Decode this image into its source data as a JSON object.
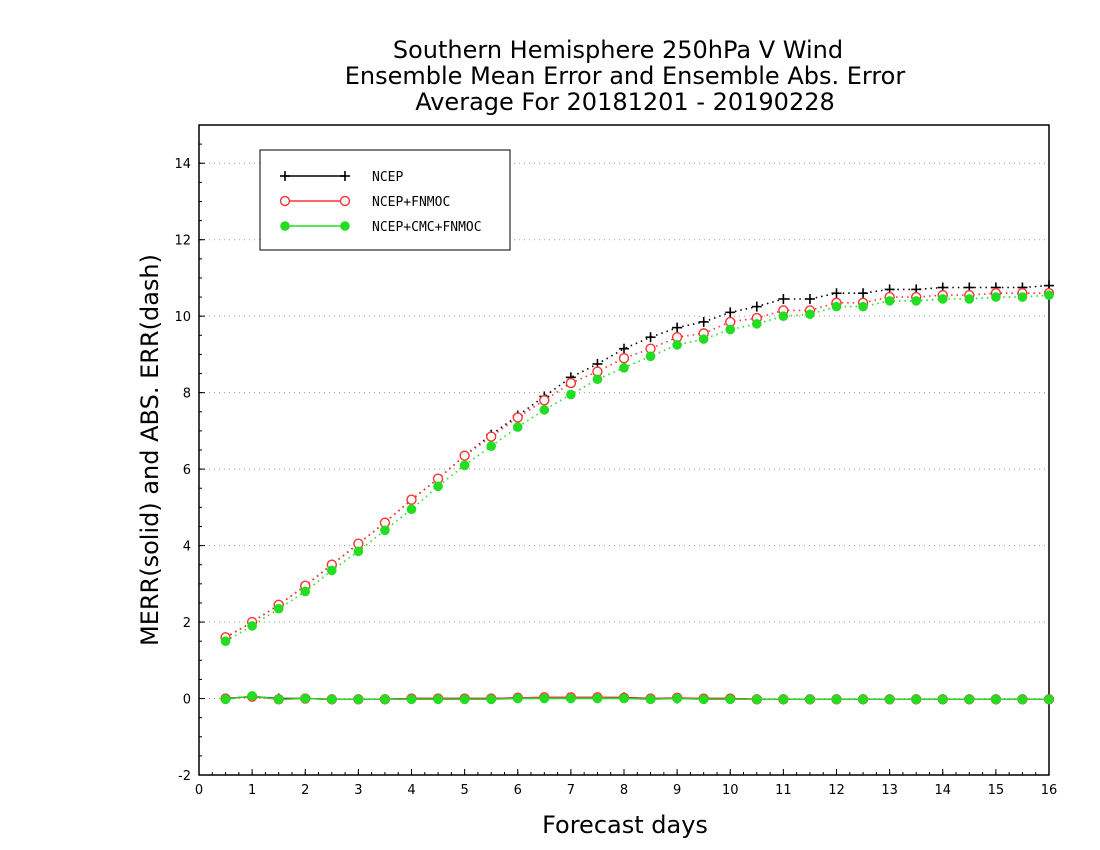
{
  "chart_data": {
    "type": "line",
    "title": [
      "Southern Hemisphere 250hPa V Wind",
      "Ensemble Mean Error and Ensemble Abs. Error",
      "Average For 20181201 - 20190228"
    ],
    "xlabel": "Forecast days",
    "ylabel": "MERR(solid) and ABS. ERR(dash)",
    "xlim": [
      0,
      16
    ],
    "ylim": [
      -2,
      15
    ],
    "xticks": [
      "0",
      "1",
      "2",
      "3",
      "4",
      "5",
      "6",
      "7",
      "8",
      "9",
      "10",
      "11",
      "12",
      "13",
      "14",
      "15",
      "16"
    ],
    "yticks": [
      "-2",
      "0",
      "2",
      "4",
      "6",
      "8",
      "10",
      "12",
      "14"
    ],
    "grid": "horizontal dotted",
    "legend_position": "top-left",
    "x": [
      0.5,
      1,
      1.5,
      2,
      2.5,
      3,
      3.5,
      4,
      4.5,
      5,
      5.5,
      6,
      6.5,
      7,
      7.5,
      8,
      8.5,
      9,
      9.5,
      10,
      10.5,
      11,
      11.5,
      12,
      12.5,
      13,
      13.5,
      14,
      14.5,
      15,
      15.5,
      16
    ],
    "series": [
      {
        "name": "NCEP",
        "color": "#000000",
        "marker": "plus",
        "abs_err": [
          1.6,
          2.0,
          2.45,
          2.95,
          3.5,
          4.05,
          4.6,
          5.2,
          5.75,
          6.35,
          6.9,
          7.4,
          7.9,
          8.4,
          8.75,
          9.15,
          9.45,
          9.7,
          9.85,
          10.1,
          10.25,
          10.45,
          10.45,
          10.6,
          10.6,
          10.7,
          10.7,
          10.75,
          10.75,
          10.75,
          10.75,
          10.8
        ],
        "mean_err": [
          0.0,
          0.05,
          0.0,
          0.0,
          -0.02,
          -0.02,
          -0.02,
          0.0,
          0.0,
          0.0,
          0.0,
          0.02,
          0.03,
          0.03,
          0.03,
          0.03,
          0.0,
          0.0,
          0.0,
          0.0,
          -0.02,
          -0.02,
          -0.02,
          -0.02,
          -0.02,
          -0.02,
          -0.02,
          -0.02,
          -0.02,
          -0.02,
          -0.02,
          -0.02
        ]
      },
      {
        "name": "NCEP+FNMOC",
        "color": "#ff3333",
        "marker": "open-circle",
        "abs_err": [
          1.6,
          2.0,
          2.45,
          2.95,
          3.5,
          4.05,
          4.6,
          5.2,
          5.75,
          6.35,
          6.85,
          7.35,
          7.8,
          8.25,
          8.55,
          8.9,
          9.15,
          9.45,
          9.55,
          9.85,
          9.95,
          10.15,
          10.15,
          10.35,
          10.35,
          10.5,
          10.5,
          10.55,
          10.55,
          10.6,
          10.6,
          10.6
        ],
        "mean_err": [
          0.0,
          0.05,
          -0.02,
          0.0,
          -0.02,
          -0.02,
          -0.02,
          0.0,
          0.0,
          0.0,
          0.0,
          0.02,
          0.03,
          0.03,
          0.03,
          0.02,
          0.0,
          0.02,
          0.0,
          0.0,
          -0.02,
          -0.02,
          -0.02,
          -0.02,
          -0.02,
          -0.02,
          -0.02,
          -0.02,
          -0.02,
          -0.02,
          -0.02,
          -0.02
        ]
      },
      {
        "name": "NCEP+CMC+FNMOC",
        "color": "#22dd22",
        "marker": "filled-circle",
        "abs_err": [
          1.5,
          1.9,
          2.35,
          2.8,
          3.35,
          3.85,
          4.4,
          4.95,
          5.55,
          6.1,
          6.6,
          7.1,
          7.55,
          7.95,
          8.35,
          8.65,
          8.95,
          9.25,
          9.4,
          9.65,
          9.8,
          10.0,
          10.05,
          10.25,
          10.25,
          10.4,
          10.4,
          10.45,
          10.45,
          10.5,
          10.5,
          10.55
        ],
        "mean_err": [
          -0.02,
          0.07,
          -0.02,
          0.0,
          -0.02,
          -0.02,
          -0.02,
          -0.02,
          -0.02,
          -0.02,
          -0.02,
          0.0,
          0.0,
          0.0,
          0.0,
          0.0,
          -0.02,
          0.0,
          -0.02,
          -0.02,
          -0.02,
          -0.02,
          -0.02,
          -0.02,
          -0.02,
          -0.02,
          -0.02,
          -0.02,
          -0.02,
          -0.02,
          -0.02,
          -0.02
        ]
      }
    ]
  }
}
